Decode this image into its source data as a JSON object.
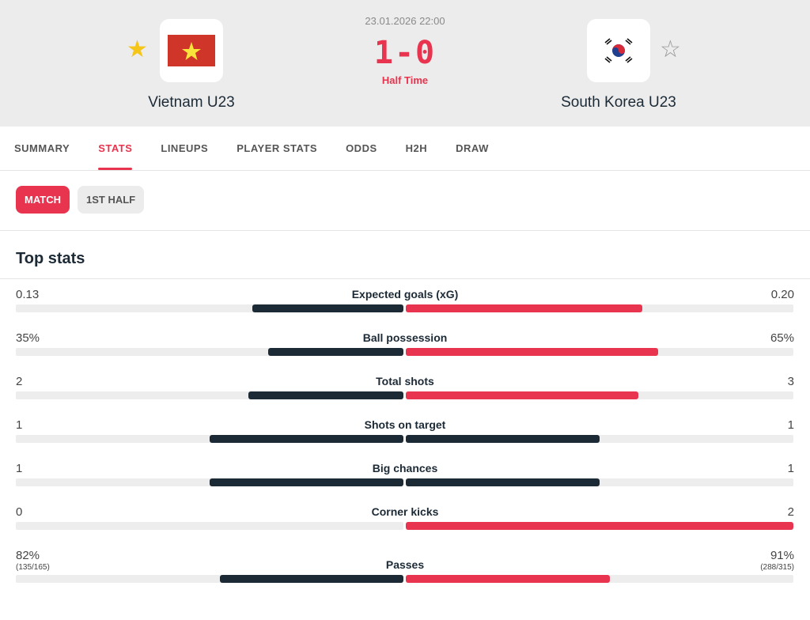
{
  "match": {
    "datetime": "23.01.2026 22:00",
    "score": "1-0",
    "status": "Half Time",
    "home": {
      "name": "Vietnam U23",
      "favorite": true
    },
    "away": {
      "name": "South Korea U23",
      "favorite": false
    }
  },
  "tabs": [
    "SUMMARY",
    "STATS",
    "LINEUPS",
    "PLAYER STATS",
    "ODDS",
    "H2H",
    "DRAW"
  ],
  "active_tab": "STATS",
  "periods": [
    "MATCH",
    "1ST HALF"
  ],
  "active_period": "MATCH",
  "section_title": "Top stats",
  "colors": {
    "accent": "#e8344e",
    "dark": "#1c2a36",
    "track": "#ededed"
  },
  "stats": [
    {
      "label": "Expected goals (xG)",
      "home": "0.13",
      "away": "0.20",
      "home_share": 0.39,
      "away_share": 0.61,
      "home_color": "dark",
      "away_color": "accent"
    },
    {
      "label": "Ball possession",
      "home": "35%",
      "away": "65%",
      "home_share": 0.35,
      "away_share": 0.65,
      "home_color": "dark",
      "away_color": "accent"
    },
    {
      "label": "Total shots",
      "home": "2",
      "away": "3",
      "home_share": 0.4,
      "away_share": 0.6,
      "home_color": "dark",
      "away_color": "accent"
    },
    {
      "label": "Shots on target",
      "home": "1",
      "away": "1",
      "home_share": 0.5,
      "away_share": 0.5,
      "home_color": "dark",
      "away_color": "dark"
    },
    {
      "label": "Big chances",
      "home": "1",
      "away": "1",
      "home_share": 0.5,
      "away_share": 0.5,
      "home_color": "dark",
      "away_color": "dark"
    },
    {
      "label": "Corner kicks",
      "home": "0",
      "away": "2",
      "home_share": 0,
      "away_share": 1,
      "home_color": "dark",
      "away_color": "accent"
    },
    {
      "label": "Passes",
      "home": "82%",
      "away": "91%",
      "home_sub": "(135/165)",
      "away_sub": "(288/315)",
      "home_share": 0.474,
      "away_share": 0.526,
      "home_color": "dark",
      "away_color": "accent"
    }
  ]
}
